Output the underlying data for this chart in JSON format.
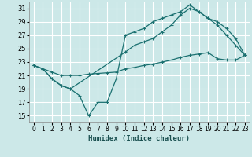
{
  "xlabel": "Humidex (Indice chaleur)",
  "bg_color": "#cce8e8",
  "grid_color": "#ffffff",
  "line_color": "#1a7070",
  "xlim": [
    -0.5,
    23.5
  ],
  "ylim": [
    14,
    32
  ],
  "yticks": [
    15,
    17,
    19,
    21,
    23,
    25,
    27,
    29,
    31
  ],
  "xticks": [
    0,
    1,
    2,
    3,
    4,
    5,
    6,
    7,
    8,
    9,
    10,
    11,
    12,
    13,
    14,
    15,
    16,
    17,
    18,
    19,
    20,
    21,
    22,
    23
  ],
  "line1_x": [
    0,
    1,
    2,
    3,
    4,
    5,
    6,
    7,
    8,
    9,
    10,
    11,
    12,
    13,
    14,
    15,
    16,
    17,
    18,
    19,
    20,
    21,
    22,
    23
  ],
  "line1_y": [
    22.5,
    22.0,
    20.5,
    19.5,
    19.0,
    18.0,
    15.0,
    17.0,
    17.0,
    20.5,
    27.0,
    27.5,
    28.0,
    29.0,
    29.5,
    30.0,
    30.5,
    31.5,
    30.5,
    29.5,
    28.5,
    27.0,
    25.5,
    24.0
  ],
  "line2_x": [
    0,
    1,
    2,
    3,
    4,
    10,
    11,
    12,
    13,
    14,
    15,
    16,
    17,
    18,
    19,
    20,
    21,
    22,
    23
  ],
  "line2_y": [
    22.5,
    22.0,
    20.5,
    19.5,
    19.0,
    24.5,
    25.5,
    26.0,
    26.5,
    27.5,
    28.5,
    30.0,
    31.0,
    30.5,
    29.5,
    29.0,
    28.0,
    26.5,
    24.0
  ],
  "line3_x": [
    0,
    1,
    2,
    3,
    4,
    5,
    6,
    7,
    8,
    9,
    10,
    11,
    12,
    13,
    14,
    15,
    16,
    17,
    18,
    19,
    20,
    21,
    22,
    23
  ],
  "line3_y": [
    22.5,
    22.0,
    21.5,
    21.0,
    21.0,
    21.0,
    21.2,
    21.3,
    21.4,
    21.5,
    22.0,
    22.2,
    22.5,
    22.7,
    23.0,
    23.3,
    23.7,
    24.0,
    24.2,
    24.4,
    23.5,
    23.3,
    23.3,
    24.0
  ]
}
